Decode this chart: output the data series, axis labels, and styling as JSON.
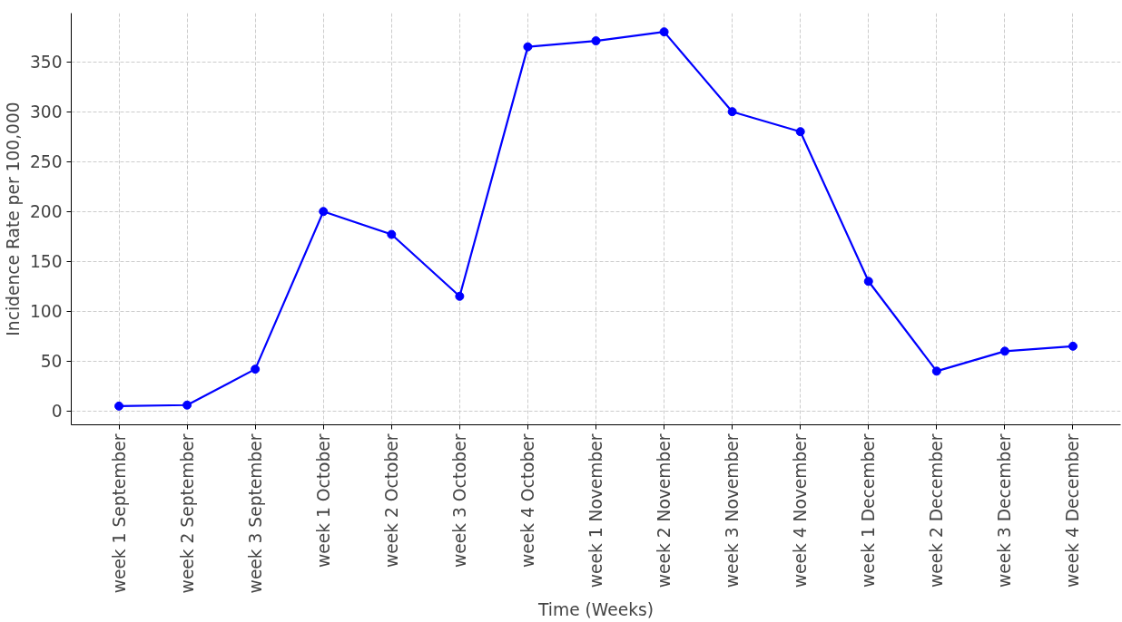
{
  "chart_data": {
    "type": "line",
    "xlabel": "Time (Weeks)",
    "ylabel": "Incidence Rate per 100,000",
    "categories": [
      "week 1 September",
      "week 2 September",
      "week 3 September",
      "week 1 October",
      "week 2 October",
      "week 3 October",
      "week 4 October",
      "week 1 November",
      "week 2 November",
      "week 3 November",
      "week 4 November",
      "week 1 December",
      "week 2 December",
      "week 3 December",
      "week 4 December"
    ],
    "series": [
      {
        "color": "#0000ff",
        "values": [
          5,
          6,
          42,
          200,
          177,
          115,
          365,
          371,
          380,
          300,
          280,
          130,
          40,
          60,
          65
        ]
      }
    ],
    "ylim": [
      -13.75,
      398.75
    ],
    "yticks": [
      0,
      50,
      100,
      150,
      200,
      250,
      300,
      350
    ],
    "grid": true,
    "marker": "circle",
    "line_style": "solid"
  }
}
